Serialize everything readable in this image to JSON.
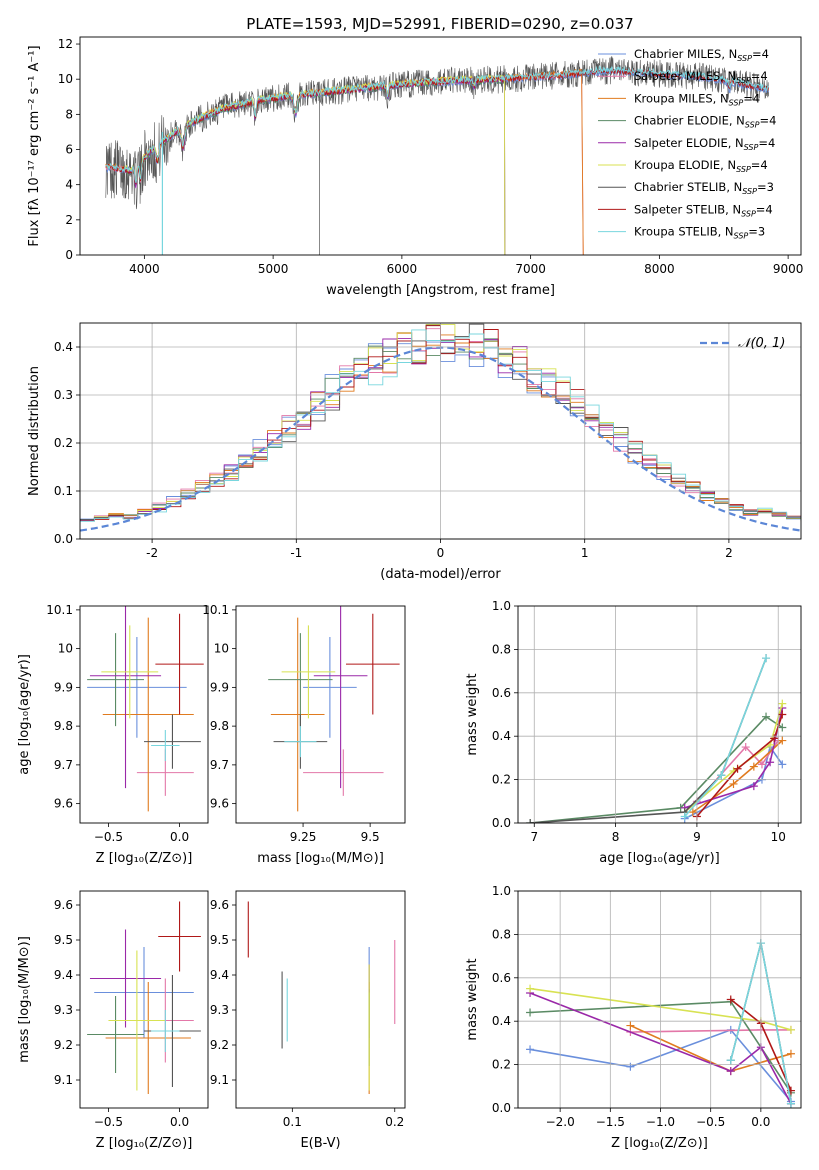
{
  "figure_title": "PLATE=1593, MJD=52991, FIBERID=0290, z=0.037",
  "colors": [
    "#6a8fdc",
    "#e377a8",
    "#e07b1f",
    "#5a8a64",
    "#9a28a8",
    "#d8e252",
    "#555555",
    "#b01818",
    "#78d6de"
  ],
  "chart_data": [
    {
      "id": "spectrum",
      "type": "line",
      "xlabel": "wavelength [Angstrom, rest frame]",
      "ylabel": "Flux [fλ 10⁻¹⁷ erg cm⁻² s⁻¹ A⁻¹]",
      "xlim": [
        3500,
        9100
      ],
      "ylim": [
        0,
        12.4
      ],
      "xticks": [
        4000,
        5000,
        6000,
        7000,
        8000,
        9000
      ],
      "yticks": [
        0,
        2,
        4,
        6,
        8,
        10,
        12
      ],
      "legend_position": "upper-right",
      "data_x": [
        3700,
        3900,
        4100,
        4300,
        4600,
        4900,
        5200,
        5600,
        6000,
        6400,
        6800,
        7200,
        7600,
        8000,
        8400,
        8850
      ],
      "data_y": [
        5.0,
        4.8,
        6.2,
        7.3,
        8.3,
        8.8,
        9.1,
        9.4,
        9.7,
        9.9,
        10.0,
        10.2,
        10.5,
        10.3,
        10.1,
        9.4
      ],
      "series": [
        {
          "name": "Chabrier MILES, N",
          "sub": "SSP",
          "suffix": "=4",
          "range": [
            3700,
            8850
          ]
        },
        {
          "name": "Salpeter MILES, N",
          "sub": "SSP",
          "suffix": "=4",
          "range": [
            3700,
            7400
          ]
        },
        {
          "name": "Kroupa MILES, N",
          "sub": "SSP",
          "suffix": "=4",
          "range": [
            3700,
            7400
          ]
        },
        {
          "name": "Chabrier ELODIE, N",
          "sub": "SSP",
          "suffix": "=4",
          "range": [
            3850,
            6800
          ]
        },
        {
          "name": "Salpeter ELODIE, N",
          "sub": "SSP",
          "suffix": "=4",
          "range": [
            3850,
            6800
          ]
        },
        {
          "name": "Kroupa ELODIE, N",
          "sub": "SSP",
          "suffix": "=4",
          "range": [
            3850,
            6800
          ]
        },
        {
          "name": "Chabrier STELIB, N",
          "sub": "SSP",
          "suffix": "=3",
          "range": [
            3700,
            8850
          ]
        },
        {
          "name": "Salpeter STELIB, N",
          "sub": "SSP",
          "suffix": "=4",
          "range": [
            3700,
            8850
          ]
        },
        {
          "name": "Kroupa STELIB, N",
          "sub": "SSP",
          "suffix": "=3",
          "range": [
            3700,
            8850
          ]
        }
      ]
    },
    {
      "id": "residuals",
      "type": "histogram",
      "xlabel": "(data-model)/error",
      "ylabel": "Normed distribution",
      "xlim": [
        -2.5,
        2.5
      ],
      "ylim": [
        0,
        0.45
      ],
      "xticks": [
        -2,
        -1,
        0,
        1,
        2
      ],
      "yticks": [
        0,
        0.1,
        0.2,
        0.3,
        0.4
      ],
      "grid": true,
      "legend_position": "upper-right",
      "legend_label": "𝒩(0, 1)",
      "bin_width": 0.1
    },
    {
      "id": "age-vs-Z",
      "type": "errorbar",
      "xlabel": "Z [log₁₀(Z/Z⊙)]",
      "ylabel": "age  [log₁₀(age/yr)]",
      "xlim": [
        -0.7,
        0.2
      ],
      "ylim": [
        9.55,
        10.11
      ],
      "xticks": [
        -0.5,
        0.0
      ],
      "xticklabels": [
        "−0.5",
        "0.0"
      ],
      "yticks": [
        9.6,
        9.7,
        9.8,
        9.9,
        10.0,
        10.1
      ],
      "points": [
        {
          "x": -0.3,
          "y": 9.9,
          "xerr": 0.35,
          "yerr": 0.13
        },
        {
          "x": -0.1,
          "y": 9.68,
          "xerr": 0.2,
          "yerr": 0.06
        },
        {
          "x": -0.22,
          "y": 9.83,
          "xerr": 0.32,
          "yerr": 0.25
        },
        {
          "x": -0.45,
          "y": 9.92,
          "xerr": 0.2,
          "yerr": 0.12
        },
        {
          "x": -0.38,
          "y": 9.93,
          "xerr": 0.25,
          "yerr": 0.29
        },
        {
          "x": -0.35,
          "y": 9.94,
          "xerr": 0.2,
          "yerr": 0.12
        },
        {
          "x": -0.05,
          "y": 9.76,
          "xerr": 0.2,
          "yerr": 0.07
        },
        {
          "x": 0.0,
          "y": 9.96,
          "xerr": 0.17,
          "yerr": 0.13
        },
        {
          "x": -0.1,
          "y": 9.75,
          "xerr": 0.1,
          "yerr": 0.04
        }
      ]
    },
    {
      "id": "age-vs-mass",
      "type": "errorbar",
      "xlabel": "mass [log₁₀(M/M⊙)]",
      "xlim": [
        9.0,
        9.63
      ],
      "ylim": [
        9.55,
        10.11
      ],
      "xticks": [
        9.25,
        9.5
      ],
      "yticks": [
        9.6,
        9.7,
        9.8,
        9.9,
        10.0,
        10.1
      ],
      "points": [
        {
          "x": 9.35,
          "y": 9.9,
          "xerr": 0.1,
          "yerr": 0.13
        },
        {
          "x": 9.4,
          "y": 9.68,
          "xerr": 0.15,
          "yerr": 0.06
        },
        {
          "x": 9.23,
          "y": 9.83,
          "xerr": 0.1,
          "yerr": 0.25
        },
        {
          "x": 9.24,
          "y": 9.92,
          "xerr": 0.12,
          "yerr": 0.12
        },
        {
          "x": 9.39,
          "y": 9.93,
          "xerr": 0.1,
          "yerr": 0.29
        },
        {
          "x": 9.27,
          "y": 9.94,
          "xerr": 0.1,
          "yerr": 0.12
        },
        {
          "x": 9.24,
          "y": 9.76,
          "xerr": 0.1,
          "yerr": 0.07
        },
        {
          "x": 9.51,
          "y": 9.96,
          "xerr": 0.1,
          "yerr": 0.13
        },
        {
          "x": 9.24,
          "y": 9.76,
          "xerr": 0.06,
          "yerr": 0.04
        }
      ]
    },
    {
      "id": "weight-vs-age",
      "type": "line",
      "xlabel": "age  [log₁₀(age/yr)]",
      "ylabel": "mass weight",
      "xlim": [
        6.8,
        10.28
      ],
      "ylim": [
        0,
        1.0
      ],
      "xticks": [
        7,
        8,
        9,
        10
      ],
      "yticks": [
        0,
        0.2,
        0.4,
        0.6,
        0.8,
        1.0
      ],
      "grid": true,
      "series": [
        {
          "x": [
            8.85,
            9.8,
            9.9,
            10.05
          ],
          "y": [
            0.02,
            0.2,
            0.35,
            0.27
          ]
        },
        {
          "x": [
            9.0,
            9.6,
            9.8,
            10.0
          ],
          "y": [
            0.1,
            0.35,
            0.27,
            0.38
          ]
        },
        {
          "x": [
            8.95,
            9.45,
            9.7,
            10.05
          ],
          "y": [
            0.05,
            0.18,
            0.26,
            0.38
          ]
        },
        {
          "x": [
            6.95,
            8.8,
            9.85,
            10.05
          ],
          "y": [
            0.0,
            0.07,
            0.49,
            0.44
          ]
        },
        {
          "x": [
            8.85,
            9.7,
            9.9,
            10.05
          ],
          "y": [
            0.07,
            0.17,
            0.28,
            0.53
          ]
        },
        {
          "x": [
            8.85,
            9.45,
            9.9,
            10.05
          ],
          "y": [
            0.05,
            0.24,
            0.36,
            0.55
          ]
        },
        {
          "x": [
            6.95,
            8.85,
            9.3,
            9.85
          ],
          "y": [
            0.0,
            0.05,
            0.22,
            0.76
          ]
        },
        {
          "x": [
            9.0,
            9.5,
            9.95,
            10.05
          ],
          "y": [
            0.03,
            0.25,
            0.39,
            0.5
          ]
        },
        {
          "x": [
            8.85,
            9.3,
            9.85
          ],
          "y": [
            0.03,
            0.22,
            0.76
          ]
        }
      ]
    },
    {
      "id": "mass-vs-Z",
      "type": "errorbar",
      "xlabel": "Z [log₁₀(Z/Z⊙)]",
      "ylabel": "mass [log₁₀(M/M⊙)]",
      "xlim": [
        -0.7,
        0.2
      ],
      "ylim": [
        9.02,
        9.64
      ],
      "xticks": [
        -0.5,
        0.0
      ],
      "xticklabels": [
        "−0.5",
        "0.0"
      ],
      "yticks": [
        9.1,
        9.2,
        9.3,
        9.4,
        9.5,
        9.6
      ],
      "points": [
        {
          "x": -0.25,
          "y": 9.35,
          "xerr": 0.35,
          "yerr": 0.13
        },
        {
          "x": -0.1,
          "y": 9.27,
          "xerr": 0.2,
          "yerr": 0.12
        },
        {
          "x": -0.22,
          "y": 9.22,
          "xerr": 0.3,
          "yerr": 0.16
        },
        {
          "x": -0.45,
          "y": 9.23,
          "xerr": 0.2,
          "yerr": 0.11
        },
        {
          "x": -0.38,
          "y": 9.39,
          "xerr": 0.25,
          "yerr": 0.14
        },
        {
          "x": -0.3,
          "y": 9.27,
          "xerr": 0.2,
          "yerr": 0.2
        },
        {
          "x": -0.05,
          "y": 9.24,
          "xerr": 0.2,
          "yerr": 0.16
        },
        {
          "x": 0.0,
          "y": 9.51,
          "xerr": 0.15,
          "yerr": 0.1
        },
        {
          "x": -0.1,
          "y": 9.24,
          "xerr": 0.1,
          "yerr": 0.06
        }
      ]
    },
    {
      "id": "mass-vs-ebv",
      "type": "errorbar",
      "xlabel": "E(B-V)",
      "xlim": [
        0.045,
        0.21
      ],
      "ylim": [
        9.02,
        9.64
      ],
      "xticks": [
        0.1,
        0.2
      ],
      "yticks": [
        9.1,
        9.2,
        9.3,
        9.4,
        9.5,
        9.6
      ],
      "points": [
        {
          "x": 0.175,
          "y": 9.35,
          "xerr": 0,
          "yerr": 0.13
        },
        {
          "x": 0.2,
          "y": 9.38,
          "xerr": 0,
          "yerr": 0.12
        },
        {
          "x": 0.175,
          "y": 9.22,
          "xerr": 0,
          "yerr": 0.16
        },
        {
          "x": 0.175,
          "y": 9.25,
          "xerr": 0,
          "yerr": 0.11
        },
        {
          "x": 0.175,
          "y": 9.39,
          "xerr": 0,
          "yerr": 0.04
        },
        {
          "x": 0.175,
          "y": 9.25,
          "xerr": 0,
          "yerr": 0.18
        },
        {
          "x": 0.09,
          "y": 9.3,
          "xerr": 0,
          "yerr": 0.11
        },
        {
          "x": 0.057,
          "y": 9.53,
          "xerr": 0,
          "yerr": 0.08
        },
        {
          "x": 0.095,
          "y": 9.3,
          "xerr": 0,
          "yerr": 0.09
        }
      ]
    },
    {
      "id": "weight-vs-Z",
      "type": "line",
      "xlabel": "Z [log₁₀(Z/Z⊙)]",
      "ylabel": "mass weight",
      "xlim": [
        -2.42,
        0.4
      ],
      "ylim": [
        0,
        1.0
      ],
      "xticks": [
        -2.0,
        -1.5,
        -1.0,
        -0.5,
        0.0
      ],
      "xticklabels": [
        "−2.0",
        "−1.5",
        "−1.0",
        "−0.5",
        "0.0"
      ],
      "yticks": [
        0,
        0.2,
        0.4,
        0.6,
        0.8,
        1.0
      ],
      "grid": true,
      "series": [
        {
          "x": [
            -2.3,
            -1.3,
            -0.3,
            0.3
          ],
          "y": [
            0.27,
            0.19,
            0.36,
            0.03
          ]
        },
        {
          "x": [
            -1.3,
            0.0,
            0.3
          ],
          "y": [
            0.35,
            0.36,
            0.36
          ]
        },
        {
          "x": [
            -1.3,
            -0.3,
            0.3
          ],
          "y": [
            0.38,
            0.17,
            0.25
          ]
        },
        {
          "x": [
            -2.3,
            -0.3,
            0.3
          ],
          "y": [
            0.44,
            0.49,
            0.07
          ]
        },
        {
          "x": [
            -2.3,
            -0.3,
            0.0,
            0.3
          ],
          "y": [
            0.53,
            0.17,
            0.28,
            0.02
          ]
        },
        {
          "x": [
            -2.3,
            0.0,
            0.3
          ],
          "y": [
            0.55,
            0.4,
            0.36
          ]
        },
        {
          "x": [
            -0.3,
            0.0,
            0.3
          ],
          "y": [
            0.22,
            0.76,
            0.02
          ]
        },
        {
          "x": [
            -0.3,
            0.0,
            0.3
          ],
          "y": [
            0.5,
            0.39,
            0.08
          ]
        },
        {
          "x": [
            -0.3,
            0.0,
            0.3
          ],
          "y": [
            0.22,
            0.76,
            0.02
          ]
        }
      ]
    }
  ]
}
